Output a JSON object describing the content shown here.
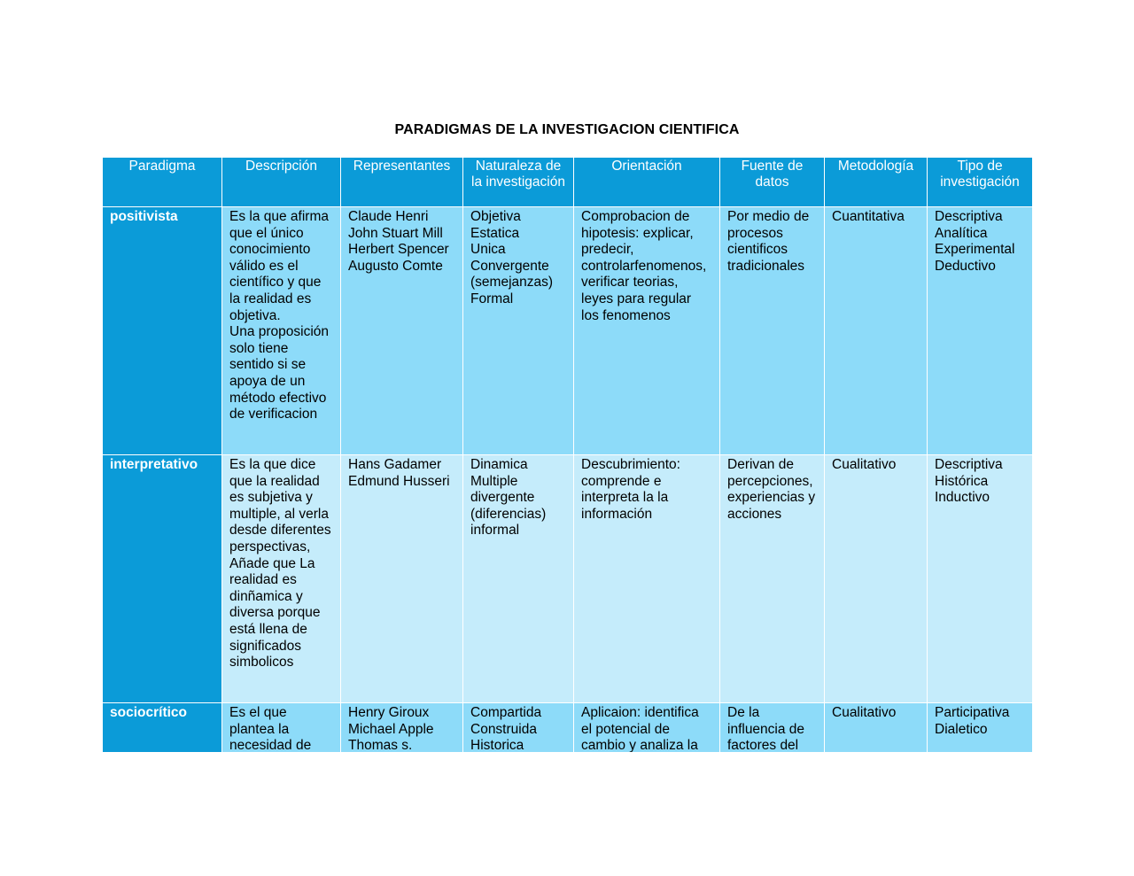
{
  "title": "PARADIGMAS DE LA INVESTIGACION CIENTIFICA",
  "headers": [
    "Paradigma",
    "Descripción",
    "Representantes",
    "Naturaleza de la investigación",
    "Orientación",
    "Fuente de datos",
    "Metodología",
    "Tipo de investigación"
  ],
  "rows": [
    {
      "paradigma": "positivista",
      "descripcion": "Es la que afirma que el único conocimiento válido es el científico y que la realidad es objetiva.\nUna proposición solo tiene sentido si se apoya de un método efectivo de verificacion",
      "representantes": "Claude Henri\nJohn Stuart Mill\nHerbert Spencer\nAugusto Comte",
      "naturaleza": "Objetiva\nEstatica\nUnica\nConvergente (semejanzas)\nFormal",
      "orientacion": "Comprobacion de hipotesis: explicar, predecir, controlarfenomenos, verificar teorias, leyes para regular los fenomenos",
      "fuente": "Por medio de procesos cientificos tradicionales",
      "metodologia": "Cuantitativa",
      "tipo": "Descriptiva\nAnalítica\nExperimental\nDeductivo"
    },
    {
      "paradigma": "interpretativo",
      "descripcion": "Es la que dice que la realidad es subjetiva y multiple, al verla desde diferentes perspectivas, Añade que La realidad es dinñamica y diversa porque está llena de significados simbolicos",
      "representantes": "Hans Gadamer\nEdmund Husseri",
      "naturaleza": "Dinamica\nMultiple\ndivergente (diferencias)\ninformal",
      "orientacion": "Descubrimiento: comprende e interpreta la la información",
      "fuente": "Derivan de percepciones, experiencias y acciones",
      "metodologia": "Cualitativo",
      "tipo": "Descriptiva\nHistórica\nInductivo"
    },
    {
      "paradigma": "sociocrítico",
      "descripcion": "Es el que plantea la necesidad de",
      "representantes": "Henry Giroux\nMichael Apple\nThomas s.",
      "naturaleza": "Compartida\nConstruida\nHistorica",
      "orientacion": "Aplicaion: identifica el potencial de cambio y analiza la",
      "fuente": "De la influencia de factores del",
      "metodologia": "Cualitativo",
      "tipo": "Participativa\nDialetico"
    }
  ]
}
